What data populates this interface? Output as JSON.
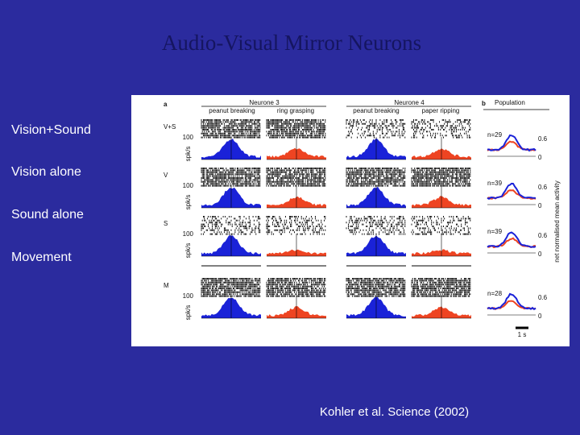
{
  "slide": {
    "title": "Audio-Visual Mirror Neurons",
    "conditions": [
      "Vision+Sound",
      "Vision alone",
      "Sound alone",
      "Movement"
    ],
    "citation": "Kohler et al. Science (2002)"
  },
  "figure": {
    "panel_a": "a",
    "panel_b": "b",
    "neurons": [
      {
        "name": "Neurone 3",
        "actions": [
          "peanut breaking",
          "ring grasping"
        ]
      },
      {
        "name": "Neurone 4",
        "actions": [
          "peanut breaking",
          "paper ripping"
        ]
      }
    ],
    "population": "Population",
    "row_labels": [
      "V+S",
      "V",
      "S",
      "M"
    ],
    "y_unit": "spk/s",
    "y_tick": "100",
    "n_labels": [
      "n=29",
      "n=39",
      "n=39",
      "n=28"
    ],
    "pop_ticks": [
      "0.6",
      "0"
    ],
    "pop_axis_label": "net normalised mean activity",
    "scale_bar": "1 s"
  }
}
